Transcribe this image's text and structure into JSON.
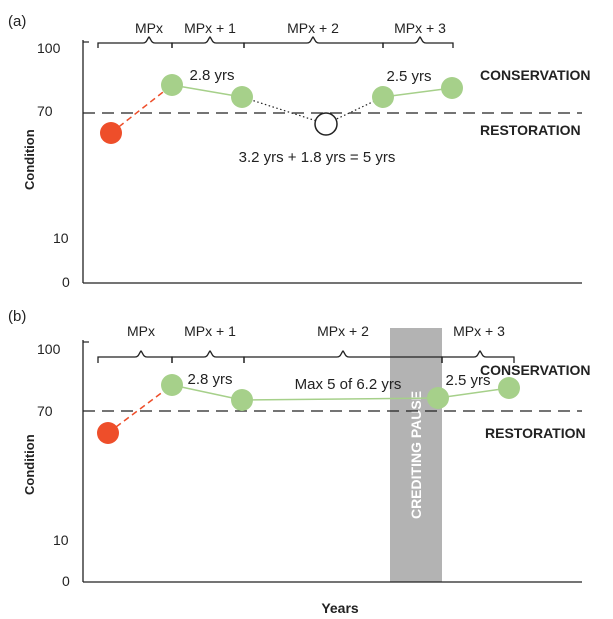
{
  "colors": {
    "conservation": "#a6d08a",
    "conservation_line": "#a6d08a",
    "restoration": "#ee4e2a",
    "pause": "#b3b3b3",
    "axis": "#222222",
    "hollow_point": "#ffffff"
  },
  "chart_data": [
    {
      "type": "line",
      "panel_label": "(a)",
      "ylabel": "Condition",
      "xlabel": "",
      "yticks": [
        {
          "value": 0,
          "label": "0"
        },
        {
          "value": 10,
          "label": "10"
        },
        {
          "value": 70,
          "label": "70"
        },
        {
          "value": 100,
          "label": "100"
        }
      ],
      "ylim": [
        0,
        100
      ],
      "xlim": [
        0,
        16.4
      ],
      "threshold": {
        "y": 70,
        "style": "dashed"
      },
      "zones": [
        {
          "label": "CONSERVATION",
          "color": "#a6d08a"
        },
        {
          "label": "RESTORATION",
          "color": "#ee4e2a"
        }
      ],
      "periods": [
        {
          "label": "MPx",
          "start": 0,
          "end": 2.5
        },
        {
          "label": "MPx + 1",
          "start": 2.5,
          "end": 5.4
        },
        {
          "label": "MPx + 2",
          "start": 5.4,
          "end": 10.3
        },
        {
          "label": "MPx + 3",
          "start": 10.3,
          "end": 13.0
        }
      ],
      "points": [
        {
          "x": 0.7,
          "y": 62,
          "kind": "restoration"
        },
        {
          "x": 2.5,
          "y": 86,
          "kind": "conservation"
        },
        {
          "x": 5.3,
          "y": 81,
          "kind": "conservation"
        },
        {
          "x": 8.5,
          "y": 66,
          "kind": "hollow"
        },
        {
          "x": 10.3,
          "y": 81,
          "kind": "conservation"
        },
        {
          "x": 12.8,
          "y": 85,
          "kind": "conservation"
        }
      ],
      "annotations": [
        "2.8 yrs",
        "2.5 yrs",
        "3.2 yrs + 1.8 yrs = 5 yrs"
      ]
    },
    {
      "type": "line",
      "panel_label": "(b)",
      "ylabel": "Condition",
      "xlabel": "Years",
      "yticks": [
        {
          "value": 0,
          "label": "0"
        },
        {
          "value": 10,
          "label": "10"
        },
        {
          "value": 70,
          "label": "70"
        },
        {
          "value": 100,
          "label": "100"
        }
      ],
      "ylim": [
        0,
        100
      ],
      "xlim": [
        0,
        16.4
      ],
      "threshold": {
        "y": 70,
        "style": "dashed"
      },
      "zones": [
        {
          "label": "CONSERVATION",
          "color": "#a6d08a"
        },
        {
          "label": "RESTORATION",
          "color": "#ee4e2a"
        }
      ],
      "periods": [
        {
          "label": "MPx",
          "start": 0,
          "end": 2.5
        },
        {
          "label": "MPx + 1",
          "start": 2.5,
          "end": 5.4
        },
        {
          "label": "MPx + 2",
          "start": 5.4,
          "end": 12.0
        },
        {
          "label": "MPx + 3",
          "start": 12.0,
          "end": 14.3
        }
      ],
      "pause": {
        "label": "CREDITING PAUSE",
        "start": 10.3,
        "end": 12.0
      },
      "points": [
        {
          "x": 0.7,
          "y": 58,
          "kind": "restoration"
        },
        {
          "x": 2.5,
          "y": 80,
          "kind": "conservation"
        },
        {
          "x": 5.4,
          "y": 74,
          "kind": "conservation"
        },
        {
          "x": 11.5,
          "y": 74,
          "kind": "conservation"
        },
        {
          "x": 14.1,
          "y": 79,
          "kind": "conservation"
        }
      ],
      "annotations": [
        "2.8 yrs",
        "Max 5 of 6.2 yrs",
        "2.5 yrs"
      ]
    }
  ]
}
